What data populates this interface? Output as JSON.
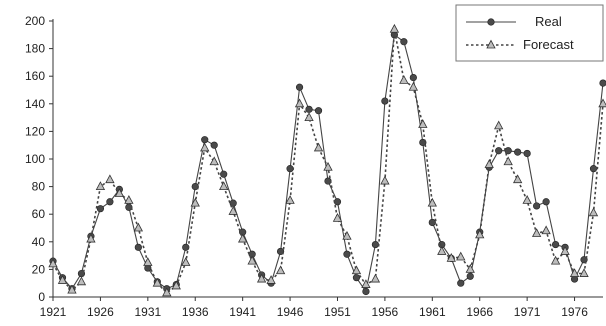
{
  "chart_data": {
    "type": "line",
    "x": [
      1921,
      1922,
      1923,
      1924,
      1925,
      1926,
      1927,
      1928,
      1929,
      1930,
      1931,
      1932,
      1933,
      1934,
      1935,
      1936,
      1937,
      1938,
      1939,
      1940,
      1941,
      1942,
      1943,
      1944,
      1945,
      1946,
      1947,
      1948,
      1949,
      1950,
      1951,
      1952,
      1953,
      1954,
      1955,
      1956,
      1957,
      1958,
      1959,
      1960,
      1961,
      1962,
      1963,
      1964,
      1965,
      1966,
      1967,
      1968,
      1969,
      1970,
      1971,
      1972,
      1973,
      1974,
      1975,
      1976,
      1977,
      1978,
      1979
    ],
    "series": [
      {
        "name": "Real",
        "style": "solid",
        "marker": "circle",
        "color": "#444444",
        "values": [
          26,
          14,
          6,
          17,
          44,
          64,
          69,
          78,
          65,
          36,
          21,
          11,
          6,
          9,
          36,
          80,
          114,
          110,
          89,
          68,
          47,
          31,
          16,
          10,
          33,
          93,
          152,
          136,
          135,
          84,
          69,
          31,
          14,
          4,
          38,
          142,
          190,
          185,
          159,
          112,
          54,
          38,
          28,
          10,
          15,
          47,
          94,
          106,
          106,
          105,
          104,
          66,
          69,
          38,
          36,
          13,
          27,
          93,
          155
        ],
        "title": ""
      },
      {
        "name": "Forecast",
        "style": "dotted",
        "marker": "triangle",
        "color": "#444444",
        "values": [
          24,
          12,
          5,
          11,
          42,
          80,
          85,
          75,
          70,
          50,
          25,
          10,
          3,
          8,
          25,
          68,
          108,
          98,
          80,
          62,
          42,
          26,
          13,
          12,
          19,
          70,
          140,
          130,
          108,
          94,
          57,
          44,
          19,
          9,
          13,
          84,
          194,
          157,
          152,
          125,
          68,
          33,
          28,
          29,
          20,
          45,
          96,
          124,
          98,
          85,
          70,
          46,
          48,
          26,
          33,
          17,
          17,
          61,
          140
        ]
      }
    ],
    "xticks": [
      1921,
      1926,
      1931,
      1936,
      1941,
      1946,
      1951,
      1956,
      1961,
      1966,
      1971,
      1976
    ],
    "yticks": [
      0,
      20,
      40,
      60,
      80,
      100,
      120,
      140,
      160,
      180,
      200
    ],
    "xlim": [
      1921,
      1979
    ],
    "ylim": [
      0,
      200
    ],
    "xlabel": "",
    "ylabel": "",
    "grid": false,
    "legend": "top-right"
  }
}
